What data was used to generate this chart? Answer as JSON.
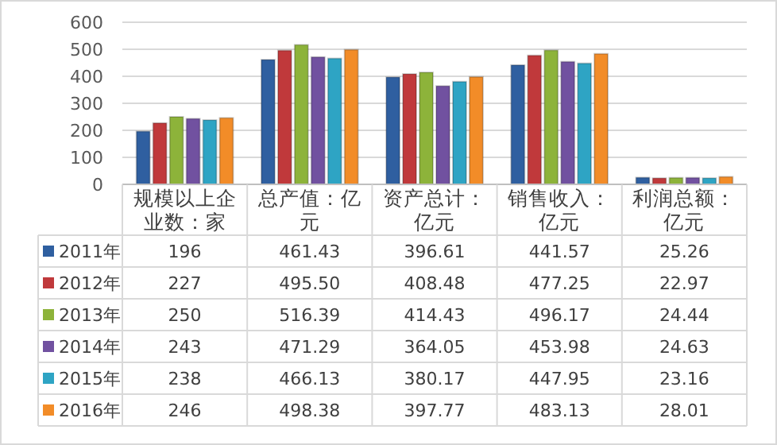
{
  "chart_data": {
    "type": "bar",
    "categories": [
      "规模以上企业数：家",
      "总产值：亿元",
      "资产总计：亿元",
      "销售收入：亿元",
      "利润总额：亿元"
    ],
    "ylim": [
      0,
      600
    ],
    "yticks": [
      0,
      100,
      200,
      300,
      400,
      500,
      600
    ],
    "grid": "y",
    "legend": "bottom left",
    "series": [
      {
        "name": "2011年",
        "color": "#2f5fa0",
        "values": [
          196,
          461.43,
          396.61,
          441.57,
          25.26
        ],
        "value_labels": [
          "196",
          "461.43",
          "396.61",
          "441.57",
          "25.26"
        ]
      },
      {
        "name": "2012年",
        "color": "#c0393b",
        "values": [
          227,
          495.5,
          408.48,
          477.25,
          22.97
        ],
        "value_labels": [
          "227",
          "495.50",
          "408.48",
          "477.25",
          "22.97"
        ]
      },
      {
        "name": "2013年",
        "color": "#8db33a",
        "values": [
          250,
          516.39,
          414.43,
          496.17,
          24.44
        ],
        "value_labels": [
          "250",
          "516.39",
          "414.43",
          "496.17",
          "24.44"
        ]
      },
      {
        "name": "2014年",
        "color": "#7151a0",
        "values": [
          243,
          471.29,
          364.05,
          453.98,
          24.63
        ],
        "value_labels": [
          "243",
          "471.29",
          "364.05",
          "453.98",
          "24.63"
        ]
      },
      {
        "name": "2015年",
        "color": "#2ea4c4",
        "values": [
          238,
          466.13,
          380.17,
          447.95,
          23.16
        ],
        "value_labels": [
          "238",
          "466.13",
          "380.17",
          "447.95",
          "23.16"
        ]
      },
      {
        "name": "2016年",
        "color": "#f28c28",
        "values": [
          246,
          498.38,
          397.77,
          483.13,
          28.01
        ],
        "value_labels": [
          "246",
          "498.38",
          "397.77",
          "483.13",
          "28.01"
        ]
      }
    ]
  }
}
